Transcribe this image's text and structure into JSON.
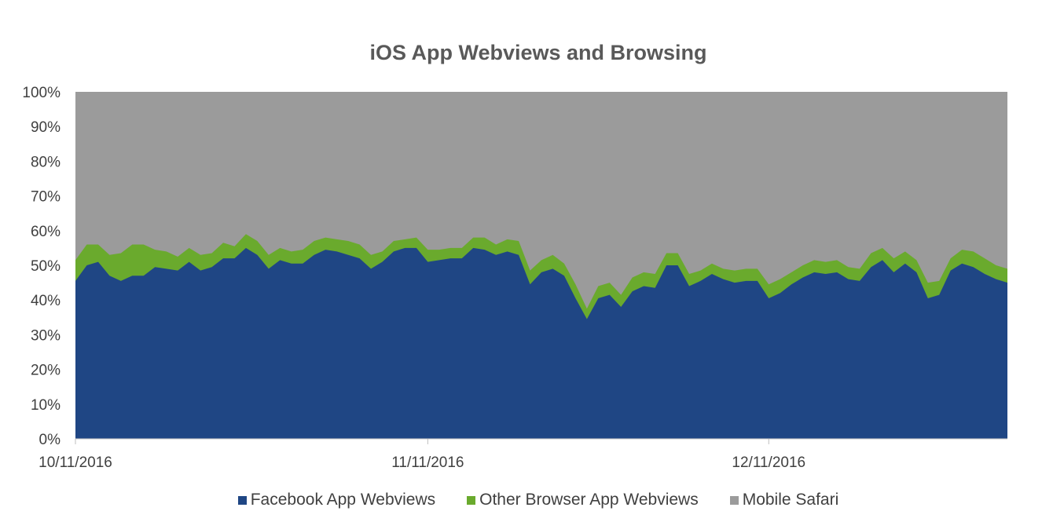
{
  "chart_data": {
    "type": "area",
    "stacked": true,
    "percent": true,
    "title": "iOS App Webviews and Browsing",
    "x_tick_labels": [
      "10/11/2016",
      "11/11/2016",
      "12/11/2016"
    ],
    "x_tick_indices": [
      0,
      31,
      61
    ],
    "y_tick_labels": [
      "0%",
      "10%",
      "20%",
      "30%",
      "40%",
      "50%",
      "60%",
      "70%",
      "80%",
      "90%",
      "100%"
    ],
    "ylim": [
      0,
      100
    ],
    "grid": false,
    "legend_position": "bottom",
    "series": [
      {
        "name": "Facebook App Webviews",
        "color": "#1f4684",
        "values": [
          45.5,
          50,
          51,
          47,
          45.5,
          47,
          47,
          49.5,
          49,
          48.5,
          51,
          48.5,
          49.5,
          52,
          52,
          55,
          53,
          49,
          51.5,
          50.5,
          50.5,
          53,
          54.5,
          54,
          53,
          52,
          49,
          51,
          54,
          55,
          55,
          51,
          51.5,
          52,
          52,
          55,
          54.5,
          53,
          54,
          53,
          44.5,
          48,
          49,
          47,
          40.5,
          34.5,
          40.5,
          41.5,
          38,
          42.5,
          44,
          43.5,
          50,
          50,
          44,
          45.5,
          47.5,
          46,
          45,
          45.5,
          45.5,
          40.5,
          42,
          44.5,
          46.5,
          48,
          47.5,
          48,
          46,
          45.5,
          49.5,
          51.5,
          48,
          50.5,
          48,
          40.5,
          41.5,
          48.5,
          50.5,
          49.5,
          47.5,
          46,
          45
        ]
      },
      {
        "name": "Other Browser App Webviews",
        "color": "#6aaa2d",
        "values": [
          6,
          6,
          5,
          6,
          8,
          9,
          9,
          5,
          5,
          4,
          4,
          4.5,
          4,
          4.5,
          3.5,
          4,
          4,
          4,
          3.5,
          3.5,
          4,
          4,
          3.5,
          3.5,
          4,
          4,
          4,
          3,
          3,
          2.5,
          3,
          3.5,
          3,
          3,
          3,
          3,
          3.5,
          3,
          3.5,
          4,
          4,
          3.5,
          4,
          3.5,
          4,
          3,
          3.5,
          3.5,
          3.5,
          4,
          4,
          4,
          3.5,
          3.5,
          3.5,
          3,
          3,
          3,
          3.5,
          3.5,
          3.5,
          4,
          4,
          3.5,
          3.5,
          3.5,
          3.5,
          3.5,
          3.5,
          3.5,
          4,
          3.5,
          4,
          3.5,
          3.5,
          4.5,
          4,
          3.5,
          4,
          4.5,
          4.5,
          4,
          4
        ]
      },
      {
        "name": "Mobile Safari",
        "color": "#9b9b9b",
        "values": []
      }
    ]
  }
}
